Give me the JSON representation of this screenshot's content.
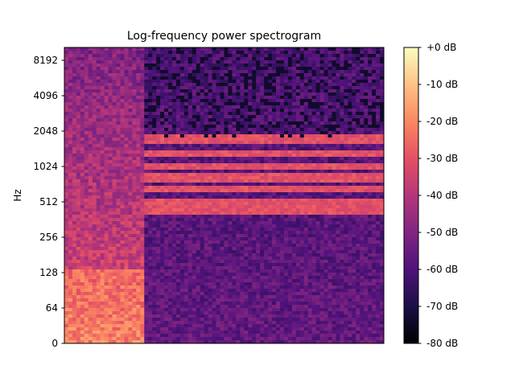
{
  "chart_data": {
    "type": "heatmap",
    "title": "Log-frequency power spectrogram",
    "xlabel": "",
    "ylabel": "Hz",
    "y_scale": "log",
    "y_ticks": [
      {
        "value": 0,
        "label": "0"
      },
      {
        "value": 64,
        "label": "64"
      },
      {
        "value": 128,
        "label": "128"
      },
      {
        "value": 256,
        "label": "256"
      },
      {
        "value": 512,
        "label": "512"
      },
      {
        "value": 1024,
        "label": "1024"
      },
      {
        "value": 2048,
        "label": "2048"
      },
      {
        "value": 4096,
        "label": "4096"
      },
      {
        "value": 8192,
        "label": "8192"
      }
    ],
    "colorbar": {
      "colormap": "magma",
      "range_db": [
        -80,
        0
      ],
      "ticks": [
        {
          "value": 0,
          "label": "+0 dB"
        },
        {
          "value": -10,
          "label": "-10 dB"
        },
        {
          "value": -20,
          "label": "-20 dB"
        },
        {
          "value": -30,
          "label": "-30 dB"
        },
        {
          "value": -40,
          "label": "-40 dB"
        },
        {
          "value": -50,
          "label": "-50 dB"
        },
        {
          "value": -60,
          "label": "-60 dB"
        },
        {
          "value": -70,
          "label": "-70 dB"
        },
        {
          "value": -80,
          "label": "-80 dB"
        }
      ]
    },
    "grid": false
  }
}
